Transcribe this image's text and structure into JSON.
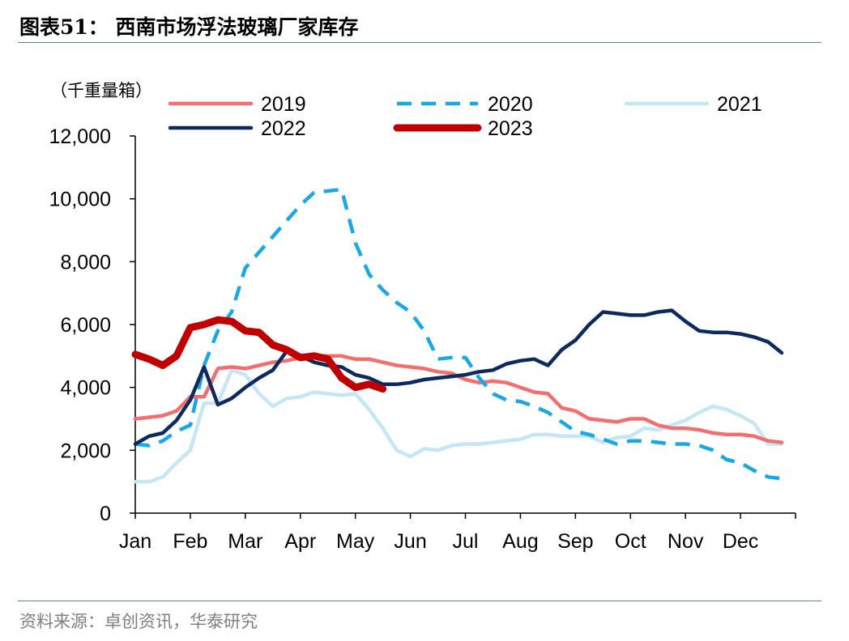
{
  "header": {
    "title": "图表51：  西南市场浮法玻璃厂家库存"
  },
  "footer": {
    "source": "资料来源：卓创资讯，华泰研究"
  },
  "chart_data": {
    "type": "line",
    "ylabel": "（千重量箱）",
    "ylim": [
      0,
      12000
    ],
    "yticks": [
      0,
      2000,
      4000,
      6000,
      8000,
      10000,
      12000
    ],
    "ytick_labels": [
      "0",
      "2,000",
      "4,000",
      "6,000",
      "8,000",
      "10,000",
      "12,000"
    ],
    "months": [
      "Jan",
      "Feb",
      "Mar",
      "Apr",
      "May",
      "Jun",
      "Jul",
      "Aug",
      "Sep",
      "Oct",
      "Nov",
      "Dec"
    ],
    "legend_placement": "top",
    "colors": {
      "2019": "#f36f6f",
      "2020": "#1aa7e8",
      "2021": "#c5e6f7",
      "2022": "#0d2a5e",
      "2023": "#c00000"
    },
    "series": [
      {
        "name": "2019",
        "x": [
          0,
          0.25,
          0.5,
          0.75,
          1.0,
          1.25,
          1.5,
          1.75,
          2.0,
          2.25,
          2.5,
          2.75,
          3.0,
          3.25,
          3.5,
          3.75,
          4.0,
          4.25,
          4.5,
          4.75,
          5.0,
          5.25,
          5.5,
          5.75,
          6.0,
          6.25,
          6.5,
          6.75,
          7.0,
          7.25,
          7.5,
          7.75,
          8.0,
          8.25,
          8.5,
          8.75,
          9.0,
          9.25,
          9.5,
          9.75,
          10.0,
          10.25,
          10.5,
          10.75,
          11.0,
          11.25,
          11.5,
          11.75
        ],
        "values": [
          3000,
          3050,
          3100,
          3250,
          3700,
          3700,
          4600,
          4650,
          4600,
          4700,
          4800,
          4850,
          4950,
          5000,
          5000,
          5000,
          4900,
          4900,
          4800,
          4700,
          4650,
          4600,
          4500,
          4450,
          4250,
          4150,
          4200,
          4150,
          4000,
          3850,
          3800,
          3350,
          3250,
          3000,
          2950,
          2900,
          3000,
          3000,
          2800,
          2700,
          2700,
          2650,
          2550,
          2500,
          2500,
          2450,
          2300,
          2250
        ]
      },
      {
        "name": "2020",
        "x": [
          0,
          0.25,
          0.5,
          0.75,
          1.0,
          1.25,
          1.5,
          1.75,
          2.0,
          2.25,
          2.5,
          2.75,
          3.0,
          3.25,
          3.5,
          3.75,
          4.0,
          4.25,
          4.5,
          4.75,
          5.0,
          5.25,
          5.5,
          5.75,
          6.0,
          6.25,
          6.5,
          6.75,
          7.0,
          7.25,
          7.5,
          7.75,
          8.0,
          8.25,
          8.5,
          8.75,
          9.0,
          9.25,
          9.5,
          9.75,
          10.0,
          10.25,
          10.5,
          10.75,
          11.0,
          11.25,
          11.5,
          11.75
        ],
        "values": [
          2200,
          2150,
          2300,
          2600,
          2800,
          4700,
          5800,
          6400,
          7800,
          8300,
          8800,
          9300,
          9800,
          10200,
          10250,
          10300,
          8600,
          7600,
          7100,
          6700,
          6400,
          5800,
          4900,
          4950,
          4950,
          4300,
          3800,
          3600,
          3550,
          3400,
          3200,
          2900,
          2600,
          2500,
          2350,
          2200,
          2300,
          2300,
          2250,
          2200,
          2200,
          2150,
          2000,
          1700,
          1600,
          1350,
          1150,
          1100
        ]
      },
      {
        "name": "2021",
        "x": [
          0,
          0.25,
          0.5,
          0.75,
          1.0,
          1.25,
          1.5,
          1.75,
          2.0,
          2.25,
          2.5,
          2.75,
          3.0,
          3.25,
          3.5,
          3.75,
          4.0,
          4.25,
          4.5,
          4.75,
          5.0,
          5.25,
          5.5,
          5.75,
          6.0,
          6.25,
          6.5,
          6.75,
          7.0,
          7.25,
          7.5,
          7.75,
          8.0,
          8.25,
          8.5,
          8.75,
          9.0,
          9.25,
          9.5,
          9.75,
          10.0,
          10.25,
          10.5,
          10.75,
          11.0,
          11.25,
          11.5,
          11.75
        ],
        "values": [
          1000,
          1000,
          1150,
          1600,
          2000,
          3500,
          3500,
          4550,
          4400,
          3800,
          3400,
          3650,
          3700,
          3850,
          3800,
          3750,
          3800,
          3300,
          2700,
          2000,
          1800,
          2050,
          2000,
          2150,
          2200,
          2200,
          2250,
          2300,
          2350,
          2500,
          2500,
          2450,
          2450,
          2450,
          2250,
          2400,
          2450,
          2700,
          2650,
          2800,
          2950,
          3200,
          3400,
          3300,
          3100,
          2850,
          2200,
          2200
        ]
      },
      {
        "name": "2022",
        "x": [
          0,
          0.25,
          0.5,
          0.75,
          1.0,
          1.25,
          1.5,
          1.75,
          2.0,
          2.25,
          2.5,
          2.75,
          3.0,
          3.25,
          3.5,
          3.75,
          4.0,
          4.25,
          4.5,
          4.75,
          5.0,
          5.25,
          5.5,
          5.75,
          6.0,
          6.25,
          6.5,
          6.75,
          7.0,
          7.25,
          7.5,
          7.75,
          8.0,
          8.25,
          8.5,
          8.75,
          9.0,
          9.25,
          9.5,
          9.75,
          10.0,
          10.25,
          10.5,
          10.75,
          11.0,
          11.25,
          11.5,
          11.75
        ],
        "values": [
          2200,
          2450,
          2550,
          2950,
          3600,
          4650,
          3450,
          3650,
          4000,
          4300,
          4550,
          5150,
          5000,
          4800,
          4700,
          4650,
          4400,
          4300,
          4100,
          4100,
          4150,
          4250,
          4300,
          4350,
          4400,
          4500,
          4550,
          4750,
          4850,
          4900,
          4700,
          5200,
          5500,
          6000,
          6400,
          6350,
          6300,
          6300,
          6400,
          6450,
          6100,
          5800,
          5750,
          5750,
          5700,
          5600,
          5450,
          5100
        ]
      },
      {
        "name": "2023",
        "x": [
          0,
          0.25,
          0.5,
          0.75,
          1.0,
          1.25,
          1.5,
          1.75,
          2.0,
          2.25,
          2.5,
          2.75,
          3.0,
          3.25,
          3.5,
          3.75,
          4.0,
          4.25,
          4.5
        ],
        "values": [
          5050,
          4900,
          4700,
          5000,
          5900,
          6000,
          6150,
          6100,
          5800,
          5750,
          5350,
          5200,
          4950,
          5000,
          4900,
          4300,
          4000,
          4100,
          3950
        ]
      }
    ]
  }
}
